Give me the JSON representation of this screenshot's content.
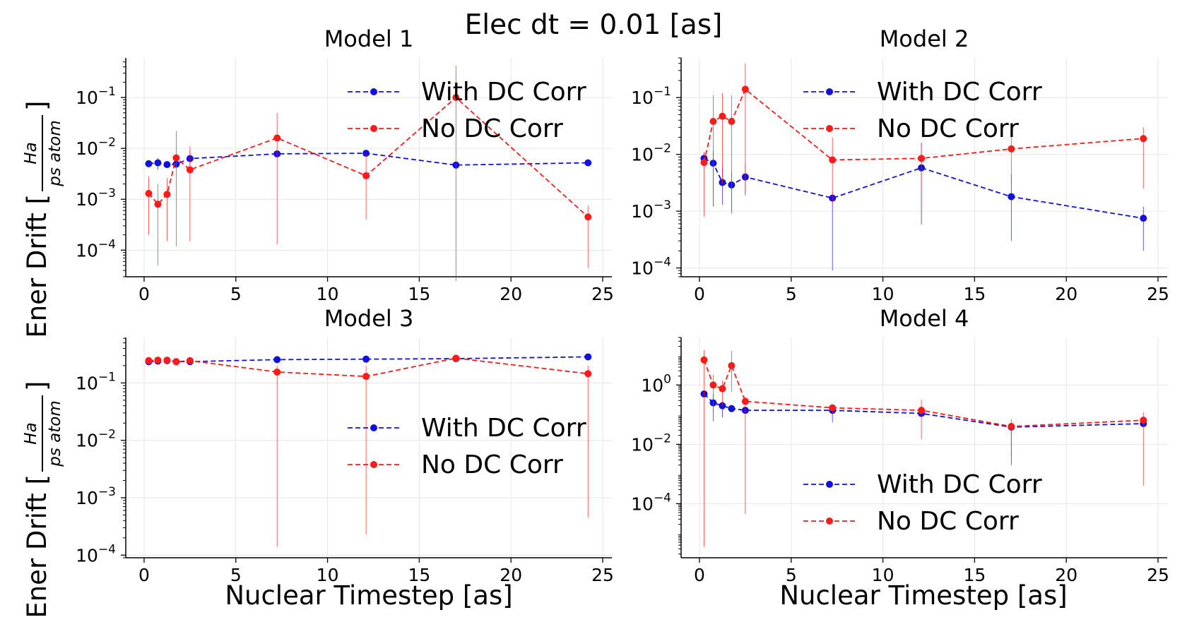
{
  "figure_title": "Elec dt = 0.01 [as]",
  "colors": {
    "with": "#1010e0",
    "without": "#ff1a1a",
    "grid": "#e6e6e6"
  },
  "ylabel_main": "Ener Drift [",
  "ylabel_num": "Ha",
  "ylabel_den": "ps atom",
  "ylabel_close": "]",
  "xlabel": "Nuclear Timestep [as]",
  "chart_data": [
    {
      "type": "line",
      "title": "Model 1",
      "xlabel": "",
      "ylabel": "Ener Drift [Ha/(ps atom)]",
      "yscale": "log",
      "xlim": [
        -1,
        25.5
      ],
      "ylim": [
        3e-05,
        0.6
      ],
      "xticks": [
        0,
        5,
        10,
        15,
        20,
        25
      ],
      "yticks": [
        {
          "v": 0.0001,
          "e": "−4"
        },
        {
          "v": 0.001,
          "e": "−3"
        },
        {
          "v": 0.01,
          "e": "−2"
        },
        {
          "v": 0.1,
          "e": "−1"
        }
      ],
      "legend_position": "top-right",
      "series": [
        {
          "name": "With DC Corr",
          "color": "#1010e0",
          "x": [
            0.25,
            0.75,
            1.25,
            1.75,
            2.5,
            7.25,
            12.1,
            17,
            24.2
          ],
          "y": [
            0.005,
            0.0052,
            0.0048,
            0.0049,
            0.0063,
            0.0078,
            0.008,
            0.0047,
            0.0052
          ],
          "err_low": [
            null,
            0.0038,
            null,
            null,
            0.0045,
            null,
            null,
            null,
            null
          ],
          "err_high": [
            null,
            0.0065,
            null,
            null,
            0.009,
            null,
            null,
            null,
            null
          ]
        },
        {
          "name": "No DC Corr",
          "color": "#ff1a1a",
          "x": [
            0.25,
            0.75,
            1.25,
            1.75,
            2.5,
            7.25,
            12.1,
            17,
            24.2
          ],
          "y": [
            0.0013,
            0.0008,
            0.00125,
            0.0065,
            0.0038,
            0.016,
            0.0029,
            0.1,
            0.00045
          ],
          "err_low": [
            0.0002,
            5e-05,
            0.00015,
            0.00012,
            0.00015,
            0.00013,
            0.0004,
            2.5e-05,
            4.5e-05
          ],
          "err_high": [
            0.0028,
            0.002,
            0.0026,
            0.022,
            0.011,
            0.05,
            0.0078,
            0.42,
            0.00075
          ]
        }
      ]
    },
    {
      "type": "line",
      "title": "Model 2",
      "xlabel": "",
      "ylabel": "",
      "yscale": "log",
      "xlim": [
        -1,
        25.5
      ],
      "ylim": [
        7e-05,
        0.5
      ],
      "xticks": [
        0,
        5,
        10,
        15,
        20,
        25
      ],
      "yticks": [
        {
          "v": 0.0001,
          "e": "−4"
        },
        {
          "v": 0.001,
          "e": "−3"
        },
        {
          "v": 0.01,
          "e": "−2"
        },
        {
          "v": 0.1,
          "e": "−1"
        }
      ],
      "legend_position": "top-right",
      "series": [
        {
          "name": "With DC Corr",
          "color": "#1010e0",
          "x": [
            0.25,
            0.75,
            1.25,
            1.75,
            2.5,
            7.25,
            12.1,
            17,
            24.2
          ],
          "y": [
            0.0085,
            0.007,
            0.0032,
            0.0029,
            0.004,
            0.0017,
            0.0058,
            0.0018,
            0.00075
          ],
          "err_low": [
            0.006,
            0.0012,
            0.0013,
            0.001,
            0.0019,
            9e-05,
            0.00058,
            0.0003,
            0.0002
          ],
          "err_high": [
            0.011,
            0.0115,
            0.006,
            0.005,
            0.007,
            0.0022,
            0.016,
            0.0045,
            0.0012
          ]
        },
        {
          "name": "No DC Corr",
          "color": "#ff1a1a",
          "x": [
            0.25,
            0.75,
            1.25,
            1.75,
            2.5,
            7.25,
            12.1,
            17,
            24.2
          ],
          "y": [
            0.0072,
            0.038,
            0.047,
            0.038,
            0.14,
            0.008,
            0.0085,
            0.0125,
            0.019
          ],
          "err_low": [
            0.0008,
            0.002,
            0.003,
            0.0009,
            0.0022,
            0.0013,
            0.0012,
            0.0028,
            0.0025
          ],
          "err_high": [
            0.011,
            0.11,
            0.12,
            0.11,
            0.4,
            0.02,
            0.016,
            0.023,
            0.03
          ]
        }
      ]
    },
    {
      "type": "line",
      "title": "Model 3",
      "xlabel": "Nuclear Timestep [as]",
      "ylabel": "Ener Drift [Ha/(ps atom)]",
      "yscale": "log",
      "xlim": [
        -1,
        25.5
      ],
      "ylim": [
        9e-05,
        0.62
      ],
      "xticks": [
        0,
        5,
        10,
        15,
        20,
        25
      ],
      "yticks": [
        {
          "v": 0.0001,
          "e": "−4"
        },
        {
          "v": 0.001,
          "e": "−3"
        },
        {
          "v": 0.01,
          "e": "−2"
        },
        {
          "v": 0.1,
          "e": "−1"
        }
      ],
      "legend_position": "center-right",
      "series": [
        {
          "name": "With DC Corr",
          "color": "#1010e0",
          "x": [
            0.25,
            0.75,
            1.25,
            1.75,
            2.5,
            7.25,
            12.1,
            17,
            24.2
          ],
          "y": [
            0.235,
            0.24,
            0.245,
            0.235,
            0.235,
            0.255,
            0.26,
            0.265,
            0.285
          ],
          "err_low": [
            null,
            null,
            null,
            null,
            null,
            null,
            null,
            null,
            null
          ],
          "err_high": [
            null,
            null,
            null,
            null,
            null,
            null,
            null,
            null,
            null
          ]
        },
        {
          "name": "No DC Corr",
          "color": "#ff1a1a",
          "x": [
            0.25,
            0.75,
            1.25,
            1.75,
            2.5,
            7.25,
            12.1,
            17,
            24.2
          ],
          "y": [
            0.245,
            0.25,
            0.25,
            0.235,
            0.245,
            0.155,
            0.13,
            0.27,
            0.145
          ],
          "err_low": [
            null,
            null,
            null,
            null,
            null,
            0.00014,
            0.00023,
            null,
            0.00045
          ],
          "err_high": [
            null,
            null,
            null,
            null,
            null,
            0.2,
            0.2,
            null,
            0.2
          ]
        }
      ]
    },
    {
      "type": "line",
      "title": "Model 4",
      "xlabel": "Nuclear Timestep [as]",
      "ylabel": "",
      "yscale": "log",
      "xlim": [
        -1,
        25.5
      ],
      "ylim": [
        1.5e-06,
        40
      ],
      "xticks": [
        0,
        5,
        10,
        15,
        20,
        25
      ],
      "yticks": [
        {
          "v": 0.0001,
          "e": "−4"
        },
        {
          "v": 0.01,
          "e": "−2"
        },
        {
          "v": 1,
          "e": "0"
        }
      ],
      "legend_position": "lower-right",
      "series": [
        {
          "name": "With DC Corr",
          "color": "#1010e0",
          "x": [
            0.25,
            0.75,
            1.25,
            1.75,
            2.5,
            7.25,
            12.1,
            17,
            24.2
          ],
          "y": [
            0.5,
            0.25,
            0.2,
            0.16,
            0.14,
            0.14,
            0.11,
            0.038,
            0.05
          ],
          "err_low": [
            null,
            0.06,
            0.08,
            null,
            null,
            0.055,
            null,
            0.002,
            null
          ],
          "err_high": [
            null,
            0.5,
            0.3,
            null,
            null,
            0.2,
            null,
            0.05,
            null
          ]
        },
        {
          "name": "No DC Corr",
          "color": "#ff1a1a",
          "x": [
            0.25,
            0.75,
            1.25,
            1.75,
            2.5,
            7.25,
            12.1,
            17,
            24.2
          ],
          "y": [
            7,
            1,
            0.75,
            4.5,
            0.28,
            0.17,
            0.14,
            0.04,
            0.065
          ],
          "err_low": [
            3.5e-06,
            0.15,
            0.2,
            0.6,
            4.5e-05,
            0.1,
            0.015,
            0.004,
            0.0004
          ],
          "err_high": [
            15,
            2.2,
            1.4,
            14,
            0.4,
            0.22,
            0.32,
            0.07,
            0.12
          ]
        }
      ]
    }
  ]
}
